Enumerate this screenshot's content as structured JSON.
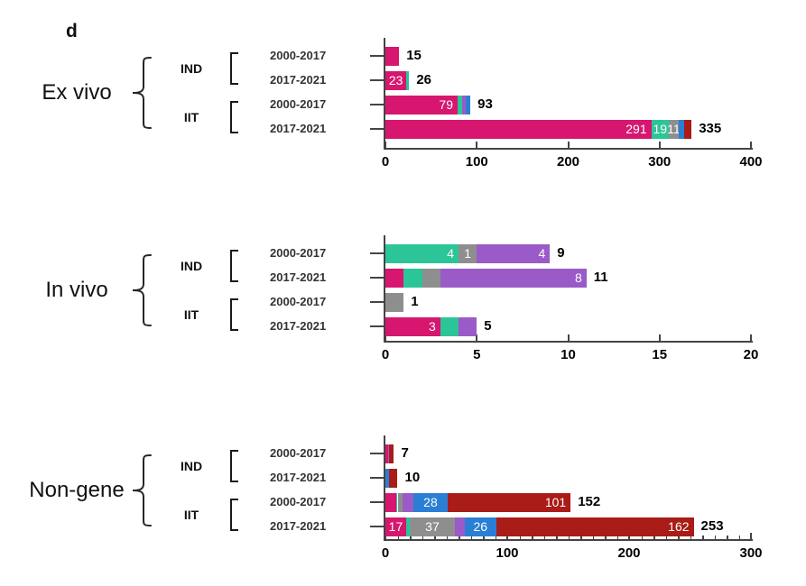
{
  "figure_label": "d",
  "colors": {
    "pink": "#d6166f",
    "green": "#2cc598",
    "gray": "#8e8e8e",
    "purple": "#9a5bc8",
    "blue": "#2a7fd4",
    "darkred": "#a91c17",
    "axis": "#444444",
    "text": "#000000"
  },
  "chart_data": {
    "type": "bar",
    "orientation": "horizontal",
    "stacked": true,
    "panels": [
      {
        "group": "Ex vivo",
        "sections": [
          "IND",
          "IIT"
        ],
        "axis": {
          "min": 0,
          "max": 400,
          "ticks": [
            0,
            100,
            200,
            300,
            400
          ],
          "minor_step": null
        },
        "rows": [
          {
            "section": "IND",
            "period": "2000-2017",
            "total": 15,
            "segments": [
              {
                "color": "pink",
                "value": 15,
                "label": ""
              }
            ]
          },
          {
            "section": "IND",
            "period": "2017-2021",
            "total": 26,
            "segments": [
              {
                "color": "pink",
                "value": 23,
                "label": "23"
              },
              {
                "color": "green",
                "value": 3,
                "label": ""
              }
            ]
          },
          {
            "section": "IIT",
            "period": "2000-2017",
            "total": 93,
            "segments": [
              {
                "color": "pink",
                "value": 79,
                "label": "79"
              },
              {
                "color": "green",
                "value": 5,
                "label": ""
              },
              {
                "color": "purple",
                "value": 4,
                "label": ""
              },
              {
                "color": "blue",
                "value": 5,
                "label": ""
              }
            ]
          },
          {
            "section": "IIT",
            "period": "2017-2021",
            "total": 335,
            "segments": [
              {
                "color": "pink",
                "value": 291,
                "label": "291"
              },
              {
                "color": "green",
                "value": 19,
                "label": "19"
              },
              {
                "color": "gray",
                "value": 11,
                "label": "11"
              },
              {
                "color": "blue",
                "value": 6,
                "label": ""
              },
              {
                "color": "darkred",
                "value": 8,
                "label": ""
              }
            ]
          }
        ]
      },
      {
        "group": "In vivo",
        "sections": [
          "IND",
          "IIT"
        ],
        "axis": {
          "min": 0,
          "max": 20,
          "ticks": [
            0,
            5,
            10,
            15,
            20
          ],
          "minor_step": null
        },
        "rows": [
          {
            "section": "IND",
            "period": "2000-2017",
            "total": 9,
            "segments": [
              {
                "color": "green",
                "value": 4,
                "label": "4"
              },
              {
                "color": "gray",
                "value": 1,
                "label": "1"
              },
              {
                "color": "purple",
                "value": 4,
                "label": "4"
              }
            ]
          },
          {
            "section": "IND",
            "period": "2017-2021",
            "total": 11,
            "segments": [
              {
                "color": "pink",
                "value": 1,
                "label": ""
              },
              {
                "color": "green",
                "value": 1,
                "label": ""
              },
              {
                "color": "gray",
                "value": 1,
                "label": ""
              },
              {
                "color": "purple",
                "value": 8,
                "label": "8"
              }
            ]
          },
          {
            "section": "IIT",
            "period": "2000-2017",
            "total": 1,
            "segments": [
              {
                "color": "gray",
                "value": 1,
                "label": ""
              }
            ]
          },
          {
            "section": "IIT",
            "period": "2017-2021",
            "total": 5,
            "segments": [
              {
                "color": "pink",
                "value": 3,
                "label": "3"
              },
              {
                "color": "green",
                "value": 1,
                "label": ""
              },
              {
                "color": "purple",
                "value": 1,
                "label": ""
              }
            ]
          }
        ]
      },
      {
        "group": "Non-gene",
        "sections": [
          "IND",
          "IIT"
        ],
        "axis": {
          "min": 0,
          "max": 300,
          "ticks": [
            0,
            100,
            200,
            300
          ],
          "minor_step": 10
        },
        "rows": [
          {
            "section": "IND",
            "period": "2000-2017",
            "total": 7,
            "segments": [
              {
                "color": "pink",
                "value": 2,
                "label": ""
              },
              {
                "color": "purple",
                "value": 1,
                "label": ""
              },
              {
                "color": "darkred",
                "value": 4,
                "label": ""
              }
            ]
          },
          {
            "section": "IND",
            "period": "2017-2021",
            "total": 10,
            "segments": [
              {
                "color": "blue",
                "value": 3,
                "label": ""
              },
              {
                "color": "darkred",
                "value": 7,
                "label": ""
              }
            ]
          },
          {
            "section": "IIT",
            "period": "2000-2017",
            "total": 152,
            "segments": [
              {
                "color": "pink",
                "value": 9,
                "label": ""
              },
              {
                "color": "green",
                "value": 1,
                "label": ""
              },
              {
                "color": "gray",
                "value": 4,
                "label": ""
              },
              {
                "color": "purple",
                "value": 9,
                "label": ""
              },
              {
                "color": "blue",
                "value": 28,
                "label": "28"
              },
              {
                "color": "darkred",
                "value": 101,
                "label": "101"
              }
            ]
          },
          {
            "section": "IIT",
            "period": "2017-2021",
            "total": 253,
            "segments": [
              {
                "color": "pink",
                "value": 17,
                "label": "17"
              },
              {
                "color": "green",
                "value": 3,
                "label": ""
              },
              {
                "color": "gray",
                "value": 37,
                "label": "37"
              },
              {
                "color": "purple",
                "value": 8,
                "label": ""
              },
              {
                "color": "blue",
                "value": 26,
                "label": "26"
              },
              {
                "color": "darkred",
                "value": 162,
                "label": "162"
              }
            ]
          }
        ]
      }
    ]
  }
}
